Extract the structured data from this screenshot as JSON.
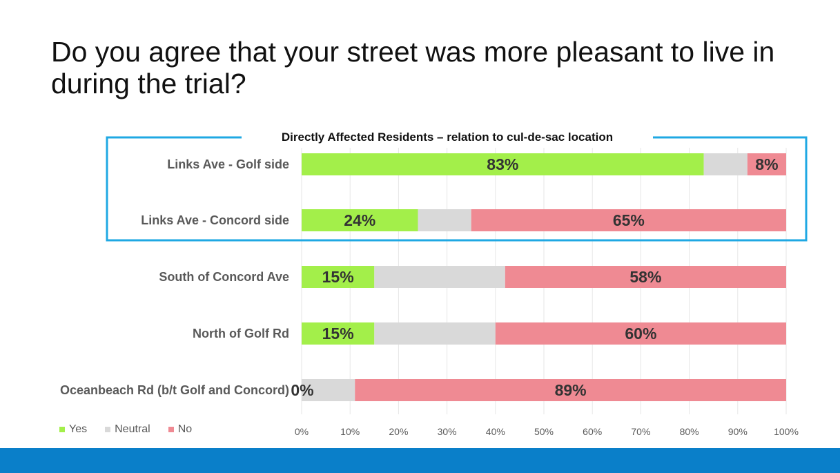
{
  "slide": {
    "title": "Do you agree that your street was more pleasant to live in during the trial?"
  },
  "group_box": {
    "label": "Directly Affected Residents – relation to cul-de-sac location",
    "color": "#1fa8e3"
  },
  "colors": {
    "yes": "#a3ef4a",
    "neutral": "#d9d9d9",
    "no": "#ef8a93",
    "footer": "#0a7fc9"
  },
  "chart_data": {
    "type": "bar",
    "orientation": "horizontal",
    "stacked": true,
    "categories": [
      "Links Ave - Golf side",
      "Links Ave - Concord side",
      "South of Concord Ave",
      "North of Golf Rd",
      "Oceanbeach Rd (b/t Golf and Concord)"
    ],
    "series": [
      {
        "name": "Yes",
        "values": [
          83,
          24,
          15,
          15,
          0
        ],
        "labels": [
          "83%",
          "24%",
          "15%",
          "15%",
          "0%"
        ]
      },
      {
        "name": "Neutral",
        "values": [
          9,
          11,
          27,
          25,
          11
        ],
        "labels": [
          "",
          "",
          "",
          "",
          ""
        ]
      },
      {
        "name": "No",
        "values": [
          8,
          65,
          58,
          60,
          89
        ],
        "labels": [
          "8%",
          "65%",
          "58%",
          "60%",
          "89%"
        ]
      }
    ],
    "xlim": [
      0,
      100
    ],
    "x_ticks": [
      "0%",
      "10%",
      "20%",
      "30%",
      "40%",
      "50%",
      "60%",
      "70%",
      "80%",
      "90%",
      "100%"
    ],
    "grid": true,
    "legend": {
      "position": "bottom-left",
      "entries": [
        "Yes",
        "Neutral",
        "No"
      ]
    }
  }
}
